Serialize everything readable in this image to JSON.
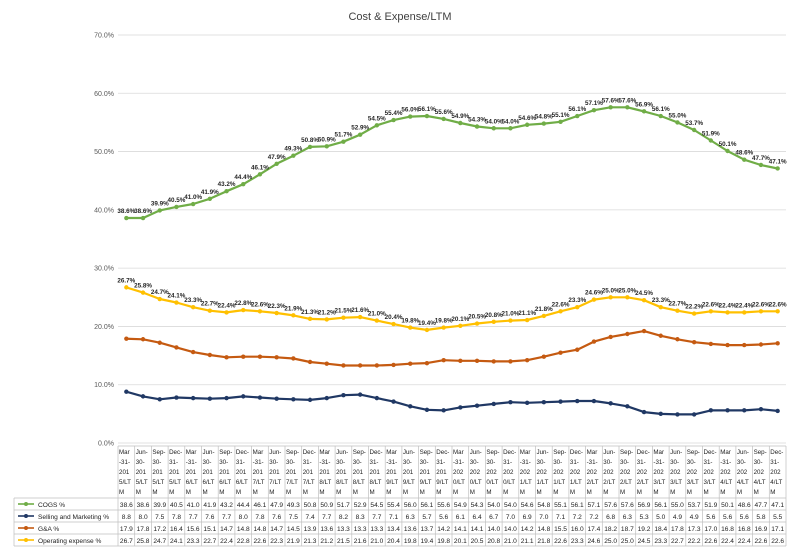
{
  "chart_data": {
    "type": "line",
    "title": "Cost & Expense/LTM",
    "y_ticks": [
      "0.0%",
      "10.0%",
      "20.0%",
      "30.0%",
      "40.0%",
      "50.0%",
      "60.0%",
      "70.0%"
    ],
    "ylim": [
      0,
      70
    ],
    "grid": true,
    "legend_placement": "data table below chart",
    "categories": [
      "Mar-31-2015 LTM",
      "Jun-30-2015 LTM",
      "Sep-30-2015 LTM",
      "Dec-31-2015 LTM",
      "Mar-31-2016 LTM",
      "Jun-30-2016 LTM",
      "Sep-30-2016 LTM",
      "Dec-31-2016 LTM",
      "Mar-31-2017 LTM",
      "Jun-30-2017 LTM",
      "Sep-30-2017 LTM",
      "Dec-31-2017 LTM",
      "Mar-31-2018 LTM",
      "Jun-30-2018 LTM",
      "Sep-30-2018 LTM",
      "Dec-31-2018 LTM",
      "Mar-31-2019 LTM",
      "Jun-30-2019 LTM",
      "Sep-30-2019 LTM",
      "Dec-31-2019 LTM",
      "Mar-31-2020 LTM",
      "Jun-30-2020 LTM",
      "Sep-30-2020 LTM",
      "Dec-31-2020 LTM",
      "Mar-31-2021 LTM",
      "Jun-30-2021 LTM",
      "Sep-30-2021 LTM",
      "Dec-31-2021 LTM",
      "Mar-31-2022 LTM",
      "Jun-30-2022 LTM",
      "Sep-30-2022 LTM",
      "Dec-31-2022 LTM",
      "Mar-31-2023 LTM",
      "Jun-30-2023 LTM",
      "Sep-30-2023 LTM",
      "Dec-31-2023 LTM",
      "Mar-31-2024 LTM",
      "Jun-30-2024 LTM",
      "Sep-30-2024 LTM",
      "Dec-31-2024 LTM"
    ],
    "category_lines": [
      [
        "Mar",
        "-31-",
        "201",
        "5/LT",
        "M"
      ],
      [
        "Jun-",
        "30-",
        "201",
        "5/LT",
        "M"
      ],
      [
        "Sep-",
        "30-",
        "201",
        "5/LT",
        "M"
      ],
      [
        "Dec-",
        "31-",
        "201",
        "5/LT",
        "M"
      ],
      [
        "Mar",
        "-31-",
        "201",
        "6/LT",
        "M"
      ],
      [
        "Jun-",
        "30-",
        "201",
        "6/LT",
        "M"
      ],
      [
        "Sep-",
        "30-",
        "201",
        "6/LT",
        "M"
      ],
      [
        "Dec-",
        "31-",
        "201",
        "6/LT",
        "M"
      ],
      [
        "Mar",
        "-31-",
        "201",
        "7/LT",
        "M"
      ],
      [
        "Jun-",
        "30-",
        "201",
        "7/LT",
        "M"
      ],
      [
        "Sep-",
        "30-",
        "201",
        "7/LT",
        "M"
      ],
      [
        "Dec-",
        "31-",
        "201",
        "7/LT",
        "M"
      ],
      [
        "Mar",
        "-31-",
        "201",
        "8/LT",
        "M"
      ],
      [
        "Jun-",
        "30-",
        "201",
        "8/LT",
        "M"
      ],
      [
        "Sep-",
        "30-",
        "201",
        "8/LT",
        "M"
      ],
      [
        "Dec-",
        "31-",
        "201",
        "8/LT",
        "M"
      ],
      [
        "Mar",
        "-31-",
        "201",
        "9/LT",
        "M"
      ],
      [
        "Jun-",
        "30-",
        "201",
        "9/LT",
        "M"
      ],
      [
        "Sep-",
        "30-",
        "201",
        "9/LT",
        "M"
      ],
      [
        "Dec-",
        "31-",
        "201",
        "9/LT",
        "M"
      ],
      [
        "Mar",
        "-31-",
        "202",
        "0/LT",
        "M"
      ],
      [
        "Jun-",
        "30-",
        "202",
        "0/LT",
        "M"
      ],
      [
        "Sep-",
        "30-",
        "202",
        "0/LT",
        "M"
      ],
      [
        "Dec-",
        "31-",
        "202",
        "0/LT",
        "M"
      ],
      [
        "Mar",
        "-31-",
        "202",
        "1/LT",
        "M"
      ],
      [
        "Jun-",
        "30-",
        "202",
        "1/LT",
        "M"
      ],
      [
        "Sep-",
        "30-",
        "202",
        "1/LT",
        "M"
      ],
      [
        "Dec-",
        "31-",
        "202",
        "1/LT",
        "M"
      ],
      [
        "Mar",
        "-31-",
        "202",
        "2/LT",
        "M"
      ],
      [
        "Jun-",
        "30-",
        "202",
        "2/LT",
        "M"
      ],
      [
        "Sep-",
        "30-",
        "202",
        "2/LT",
        "M"
      ],
      [
        "Dec-",
        "31-",
        "202",
        "2/LT",
        "M"
      ],
      [
        "Mar",
        "-31-",
        "202",
        "3/LT",
        "M"
      ],
      [
        "Jun-",
        "30-",
        "202",
        "3/LT",
        "M"
      ],
      [
        "Sep-",
        "30-",
        "202",
        "3/LT",
        "M"
      ],
      [
        "Dec-",
        "31-",
        "202",
        "3/LT",
        "M"
      ],
      [
        "Mar",
        "-31-",
        "202",
        "4/LT",
        "M"
      ],
      [
        "Jun-",
        "30-",
        "202",
        "4/LT",
        "M"
      ],
      [
        "Sep-",
        "30-",
        "202",
        "4/LT",
        "M"
      ],
      [
        "Dec-",
        "31-",
        "202",
        "4/LT",
        "M"
      ]
    ],
    "series": [
      {
        "name": "COGS %",
        "color": "#70ad47",
        "labeled": true,
        "values": [
          38.6,
          38.6,
          39.9,
          40.5,
          41.0,
          41.9,
          43.2,
          44.4,
          46.1,
          47.9,
          49.3,
          50.8,
          50.9,
          51.7,
          52.9,
          54.5,
          55.4,
          56.0,
          56.1,
          55.6,
          54.9,
          54.3,
          54.0,
          54.0,
          54.6,
          54.8,
          55.1,
          56.1,
          57.1,
          57.6,
          57.6,
          56.9,
          56.1,
          55.0,
          53.7,
          51.9,
          50.1,
          48.6,
          47.7,
          47.1
        ]
      },
      {
        "name": "Selling and Marketing %",
        "color": "#203864",
        "labeled": false,
        "values": [
          8.8,
          8.0,
          7.5,
          7.8,
          7.7,
          7.6,
          7.7,
          8.0,
          7.8,
          7.6,
          7.5,
          7.4,
          7.7,
          8.2,
          8.3,
          7.7,
          7.1,
          6.3,
          5.7,
          5.6,
          6.1,
          6.4,
          6.7,
          7.0,
          6.9,
          7.0,
          7.1,
          7.2,
          7.2,
          6.8,
          6.3,
          5.3,
          5.0,
          4.9,
          4.9,
          5.6,
          5.6,
          5.6,
          5.8,
          5.5
        ]
      },
      {
        "name": "G&A %",
        "color": "#c55a11",
        "labeled": false,
        "values": [
          17.9,
          17.8,
          17.2,
          16.4,
          15.6,
          15.1,
          14.7,
          14.8,
          14.8,
          14.7,
          14.5,
          13.9,
          13.6,
          13.3,
          13.3,
          13.3,
          13.4,
          13.6,
          13.7,
          14.2,
          14.1,
          14.1,
          14.0,
          14.0,
          14.2,
          14.8,
          15.5,
          16.0,
          17.4,
          18.2,
          18.7,
          19.2,
          18.4,
          17.8,
          17.3,
          17.0,
          16.8,
          16.8,
          16.9,
          17.1
        ]
      },
      {
        "name": "Operating expense %",
        "color": "#ffc000",
        "labeled": true,
        "values": [
          26.7,
          25.8,
          24.7,
          24.1,
          23.3,
          22.7,
          22.4,
          22.8,
          22.6,
          22.3,
          21.9,
          21.3,
          21.2,
          21.5,
          21.6,
          21.0,
          20.4,
          19.8,
          19.4,
          19.8,
          20.1,
          20.5,
          20.8,
          21.0,
          21.1,
          21.8,
          22.6,
          23.3,
          24.6,
          25.0,
          25.0,
          24.5,
          23.3,
          22.7,
          22.2,
          22.6,
          22.4,
          22.4,
          22.6,
          22.6
        ]
      }
    ],
    "table_rows": [
      {
        "name": "COGS %",
        "values": [
          "38.6",
          "38.6",
          "39.9",
          "40.5",
          "41.0",
          "41.9",
          "43.2",
          "44.4",
          "46.1",
          "47.9",
          "49.3",
          "50.8",
          "50.9",
          "51.7",
          "52.9",
          "54.5",
          "55.4",
          "56.0",
          "56.1",
          "55.6",
          "54.9",
          "54.3",
          "54.0",
          "54.0",
          "54.6",
          "54.8",
          "55.1",
          "56.1",
          "57.1",
          "57.6",
          "57.6",
          "56.9",
          "56.1",
          "55.0",
          "53.7",
          "51.9",
          "50.1",
          "48.6",
          "47.7",
          "47.1"
        ]
      },
      {
        "name": "Selling and Marketing %",
        "values": [
          "8.8",
          "8.0",
          "7.5",
          "7.8",
          "7.7",
          "7.6",
          "7.7",
          "8.0",
          "7.8",
          "7.6",
          "7.5",
          "7.4",
          "7.7",
          "8.2",
          "8.3",
          "7.7",
          "7.1",
          "6.3",
          "5.7",
          "5.6",
          "6.1",
          "6.4",
          "6.7",
          "7.0",
          "6.9",
          "7.0",
          "7.1",
          "7.2",
          "7.2",
          "6.8",
          "6.3",
          "5.3",
          "5.0",
          "4.9",
          "4.9",
          "5.6",
          "5.6",
          "5.6",
          "5.8",
          "5.5"
        ]
      },
      {
        "name": "G&A %",
        "values": [
          "17.9",
          "17.8",
          "17.2",
          "16.4",
          "15.6",
          "15.1",
          "14.7",
          "14.8",
          "14.8",
          "14.7",
          "14.5",
          "13.9",
          "13.6",
          "13.3",
          "13.3",
          "13.3",
          "13.4",
          "13.6",
          "13.7",
          "14.2",
          "14.1",
          "14.1",
          "14.0",
          "14.0",
          "14.2",
          "14.8",
          "15.5",
          "16.0",
          "17.4",
          "18.2",
          "18.7",
          "19.2",
          "18.4",
          "17.8",
          "17.3",
          "17.0",
          "16.8",
          "16.8",
          "16.9",
          "17.1"
        ]
      },
      {
        "name": "Operating expense %",
        "values": [
          "26.7",
          "25.8",
          "24.7",
          "24.1",
          "23.3",
          "22.7",
          "22.4",
          "22.8",
          "22.6",
          "22.3",
          "21.9",
          "21.3",
          "21.2",
          "21.5",
          "21.6",
          "21.0",
          "20.4",
          "19.8",
          "19.4",
          "19.8",
          "20.1",
          "20.5",
          "20.8",
          "21.0",
          "21.1",
          "21.8",
          "22.6",
          "23.3",
          "24.6",
          "25.0",
          "25.0",
          "24.5",
          "23.3",
          "22.7",
          "22.2",
          "22.6",
          "22.4",
          "22.4",
          "22.6",
          "22.6"
        ]
      }
    ]
  }
}
